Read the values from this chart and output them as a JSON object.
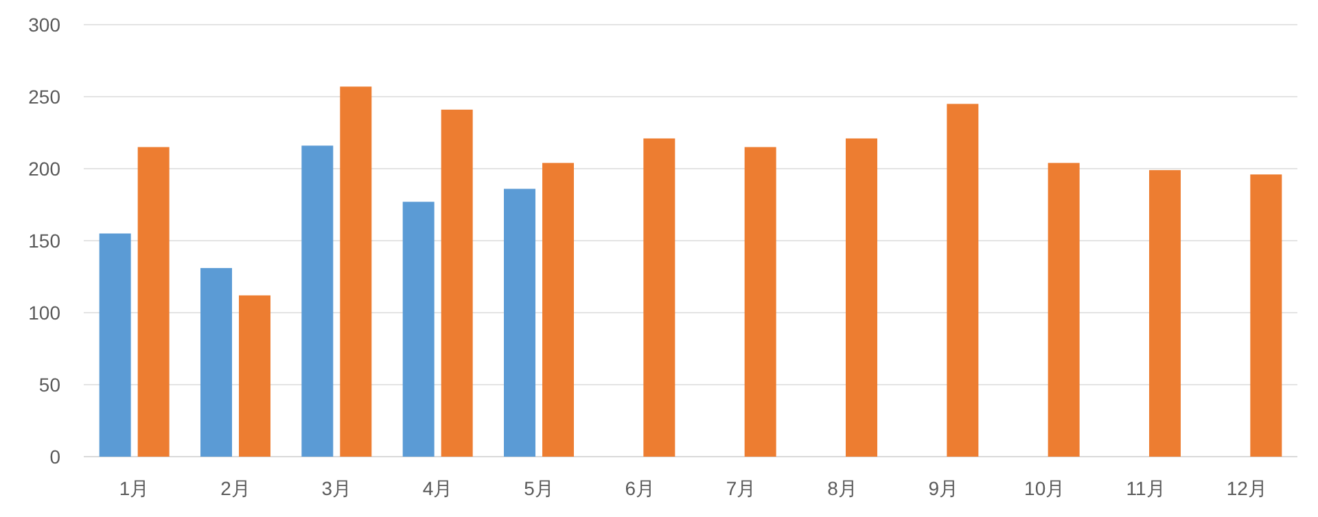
{
  "chart_data": {
    "type": "bar",
    "categories": [
      "1月",
      "2月",
      "3月",
      "4月",
      "5月",
      "6月",
      "7月",
      "8月",
      "9月",
      "10月",
      "11月",
      "12月"
    ],
    "series": [
      {
        "color": "#5b9bd5",
        "values": [
          155,
          131,
          216,
          177,
          186,
          null,
          null,
          null,
          null,
          null,
          null,
          null
        ]
      },
      {
        "color": "#ed7d31",
        "values": [
          215,
          112,
          257,
          241,
          204,
          221,
          215,
          221,
          245,
          204,
          199,
          196
        ]
      }
    ],
    "ylim": [
      0,
      300
    ],
    "yticks": [
      0,
      50,
      100,
      150,
      200,
      250,
      300
    ],
    "grid": "y"
  }
}
